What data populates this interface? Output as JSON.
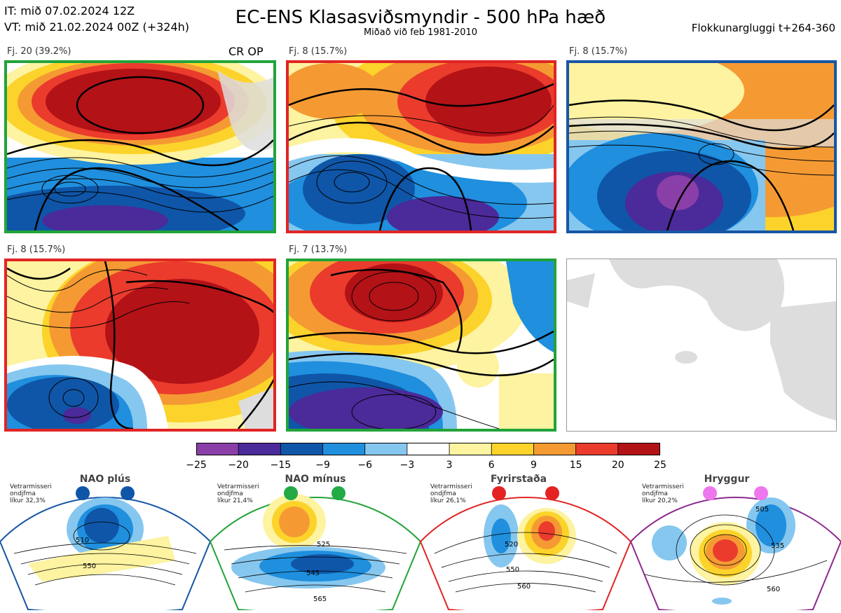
{
  "header": {
    "it_line": "IT: mið 07.02.2024 12Z",
    "vt_line": "VT: mið 21.02.2024 00Z  (+324h)",
    "title": "EC-ENS Klasasviðsmyndir - 500 hPa hæð",
    "subtitle": "Miðað við feb 1981-2010",
    "window": "Flokkunargluggi t+264-360"
  },
  "panels": [
    {
      "label": "Fj. 20 (39.2%)",
      "tag": "CR OP",
      "border": "#22a33a"
    },
    {
      "label": "Fj. 8 (15.7%)",
      "border": "#e02525"
    },
    {
      "label": "Fj. 8 (15.7%)",
      "border": "#1756a5"
    },
    {
      "label": "Fj. 8 (15.7%)",
      "border": "#e02525"
    },
    {
      "label": "Fj. 7 (13.7%)",
      "border": "#22a33a"
    }
  ],
  "colorbar": {
    "ticks": [
      "−25",
      "−20",
      "−15",
      "−9",
      "−6",
      "−3",
      "3",
      "6",
      "9",
      "15",
      "20",
      "25"
    ],
    "colors": [
      "#8a3fa8",
      "#4b2a9a",
      "#0f56a8",
      "#1f8fde",
      "#86c7ef",
      "#ffffff",
      "#fdf3a0",
      "#fcd32a",
      "#f59a33",
      "#ea3b2d",
      "#b31217"
    ]
  },
  "regimes": [
    {
      "name": "NAO plús",
      "note": "Vetrarmisseri\nondjfma\nlíkur 32,3%",
      "color": "#1756a5",
      "dot": "#0f56a8",
      "contours": [
        "510",
        "550"
      ]
    },
    {
      "name": "NAO mínus",
      "note": "Vetrarmisseri\nondjfma\nlíkur 21,4%",
      "color": "#22a33a",
      "dot": "#22aa44",
      "contours": [
        "525",
        "545",
        "565"
      ]
    },
    {
      "name": "Fyrirstaða",
      "note": "Vetrarmisseri\nondjfma\nlíkur 26,1%",
      "color": "#e02525",
      "dot": "#e52222",
      "contours": [
        "520",
        "550",
        "560"
      ]
    },
    {
      "name": "Hryggur",
      "note": "Vetrarmisseri\nondjfma\nlíkur 20,2%",
      "color": "#8b2a8f",
      "dot": "#ee77ee",
      "contours": [
        "505",
        "535",
        "560"
      ]
    }
  ]
}
